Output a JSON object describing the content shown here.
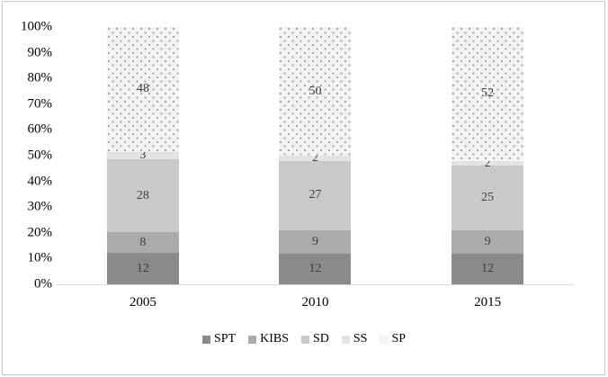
{
  "chart_data": {
    "type": "bar",
    "variant": "stacked-100-percent",
    "title": "",
    "xlabel": "",
    "ylabel": "",
    "categories": [
      "2005",
      "2010",
      "2015"
    ],
    "series": [
      {
        "name": "SPT",
        "values": [
          12,
          12,
          12
        ],
        "color": "#8a8a8a",
        "pattern": "solid"
      },
      {
        "name": "KIBS",
        "values": [
          8,
          9,
          9
        ],
        "color": "#ababab",
        "pattern": "solid"
      },
      {
        "name": "SD",
        "values": [
          28,
          27,
          25
        ],
        "color": "#c9c9c9",
        "pattern": "solid"
      },
      {
        "name": "SS",
        "values": [
          3,
          2,
          2
        ],
        "color": "#e3e3e3",
        "pattern": "solid"
      },
      {
        "name": "SP",
        "values": [
          48,
          50,
          52
        ],
        "color": "#f3f3f3",
        "pattern": "dots"
      }
    ],
    "y_ticks": [
      "100%",
      "90%",
      "80%",
      "70%",
      "60%",
      "50%",
      "40%",
      "30%",
      "20%",
      "10%",
      "0%"
    ],
    "ylim": [
      0,
      100
    ],
    "grid": false,
    "legend_position": "bottom",
    "colors": {
      "axis_line": "#d9d9d9",
      "frame_border": "#c9c9c9",
      "data_label_text": "#3f3f3f",
      "tick_label_text": "#000000",
      "dot_pattern": "#a6a6a6",
      "background": "#ffffff"
    }
  }
}
